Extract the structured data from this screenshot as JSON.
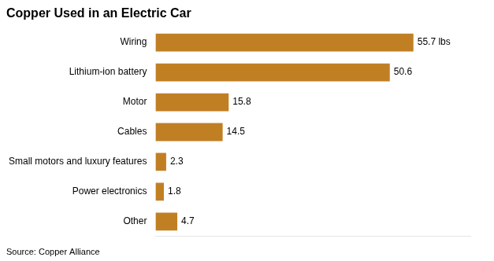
{
  "chart_data": {
    "type": "bar",
    "orientation": "horizontal",
    "title": "Copper Used in an Electric Car",
    "source": "Source: Copper Alliance",
    "categories": [
      "Wiring",
      "Lithium-ion battery",
      "Motor",
      "Cables",
      "Small motors and luxury features",
      "Power electronics",
      "Other"
    ],
    "values": [
      55.7,
      50.6,
      15.8,
      14.5,
      2.3,
      1.8,
      4.7
    ],
    "value_labels": [
      "55.7 lbs",
      "50.6",
      "15.8",
      "14.5",
      "2.3",
      "1.8",
      "4.7"
    ],
    "data_labels": true,
    "color": "#c17f24",
    "xlim": [
      0,
      68
    ],
    "tick_labels": "y",
    "grid": false
  }
}
